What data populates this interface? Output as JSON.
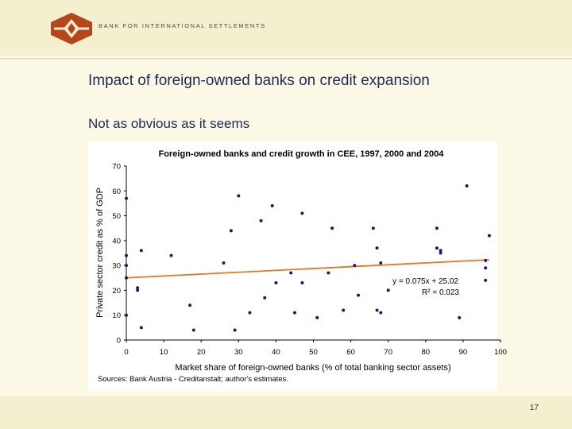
{
  "header": {
    "org_name": "BANK FOR INTERNATIONAL SETTLEMENTS"
  },
  "slide": {
    "title": "Impact of foreign-owned banks on credit expansion",
    "subtitle": "Not as obvious as it seems",
    "page_number": "17"
  },
  "colors": {
    "brand": "#b5451b",
    "points": "#1a1a6e",
    "trendline": "#e07a2a"
  },
  "chart_data": {
    "type": "scatter",
    "title": "Foreign-owned banks and credit growth in CEE, 1997, 2000 and 2004",
    "xlabel": "Market share of foreign-owned banks (% of total banking sector assets)",
    "ylabel": "Private sector credit as % of GDP",
    "xlim": [
      0,
      100
    ],
    "ylim": [
      0,
      70
    ],
    "xticks": [
      "0",
      "10",
      "20",
      "30",
      "40",
      "50",
      "60",
      "70",
      "80",
      "90",
      "100"
    ],
    "yticks": [
      "0",
      "10",
      "20",
      "30",
      "40",
      "50",
      "60",
      "70"
    ],
    "grid": false,
    "points": [
      {
        "x": 0,
        "y": 57
      },
      {
        "x": 0,
        "y": 34
      },
      {
        "x": 0,
        "y": 30
      },
      {
        "x": 0,
        "y": 25
      },
      {
        "x": 0,
        "y": 10
      },
      {
        "x": 3,
        "y": 21
      },
      {
        "x": 3,
        "y": 20
      },
      {
        "x": 4,
        "y": 36
      },
      {
        "x": 4,
        "y": 5
      },
      {
        "x": 12,
        "y": 34
      },
      {
        "x": 17,
        "y": 14
      },
      {
        "x": 18,
        "y": 4
      },
      {
        "x": 26,
        "y": 31
      },
      {
        "x": 28,
        "y": 44
      },
      {
        "x": 29,
        "y": 4
      },
      {
        "x": 30,
        "y": 58
      },
      {
        "x": 33,
        "y": 11
      },
      {
        "x": 36,
        "y": 48
      },
      {
        "x": 37,
        "y": 17
      },
      {
        "x": 39,
        "y": 54
      },
      {
        "x": 40,
        "y": 23
      },
      {
        "x": 44,
        "y": 27
      },
      {
        "x": 45,
        "y": 11
      },
      {
        "x": 47,
        "y": 51
      },
      {
        "x": 47,
        "y": 23
      },
      {
        "x": 51,
        "y": 9
      },
      {
        "x": 54,
        "y": 27
      },
      {
        "x": 55,
        "y": 45
      },
      {
        "x": 58,
        "y": 12
      },
      {
        "x": 61,
        "y": 30
      },
      {
        "x": 62,
        "y": 18
      },
      {
        "x": 66,
        "y": 45
      },
      {
        "x": 67,
        "y": 37
      },
      {
        "x": 67,
        "y": 12
      },
      {
        "x": 68,
        "y": 31
      },
      {
        "x": 68,
        "y": 11
      },
      {
        "x": 70,
        "y": 20
      },
      {
        "x": 83,
        "y": 45
      },
      {
        "x": 83,
        "y": 37
      },
      {
        "x": 84,
        "y": 36
      },
      {
        "x": 84,
        "y": 35
      },
      {
        "x": 89,
        "y": 9
      },
      {
        "x": 91,
        "y": 62
      },
      {
        "x": 96,
        "y": 32
      },
      {
        "x": 96,
        "y": 29
      },
      {
        "x": 96,
        "y": 24
      },
      {
        "x": 97,
        "y": 42
      }
    ],
    "trendline": {
      "slope": 0.075,
      "intercept": 25.02,
      "x_range": [
        0,
        97
      ]
    },
    "annotations": [
      "y = 0.075x + 25.02",
      "R² = 0.023"
    ],
    "source": "Sources: Bank Austria - Creditanstalt; author's estimates."
  }
}
